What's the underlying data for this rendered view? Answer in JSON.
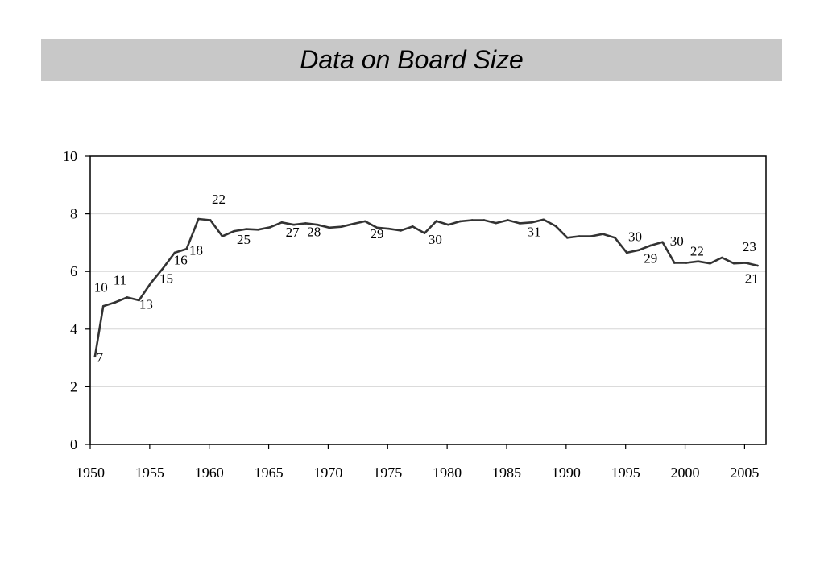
{
  "title": "Data on Board Size",
  "chart_data": {
    "type": "line",
    "title": "Data on Board Size",
    "xlabel": "",
    "ylabel": "",
    "xlim": [
      1950,
      2006.8
    ],
    "ylim": [
      0,
      10
    ],
    "x_ticks": [
      1950,
      1955,
      1960,
      1965,
      1970,
      1975,
      1980,
      1985,
      1990,
      1995,
      2000,
      2005
    ],
    "y_ticks": [
      0,
      2,
      4,
      6,
      8,
      10
    ],
    "grid": "horizontal",
    "line_color": "#333333",
    "series": [
      {
        "x": [
          1950.4,
          1951.1,
          1952.1,
          1953.1,
          1954.1,
          1955.1,
          1956.1,
          1957.1,
          1958.1,
          1959.1,
          1960.1,
          1961.1,
          1962.1,
          1963.1,
          1964.1,
          1965.1,
          1966.1,
          1967.1,
          1968.1,
          1969.1,
          1970.1,
          1971.1,
          1972.1,
          1973.1,
          1974.1,
          1975.1,
          1976.1,
          1977.1,
          1978.1,
          1979.1,
          1980.1,
          1981.1,
          1982.1,
          1983.1,
          1984.1,
          1985.1,
          1986.1,
          1987.1,
          1988.1,
          1989.1,
          1990.1,
          1991.1,
          1992.1,
          1993.1,
          1994.1,
          1995.1,
          1996.1,
          1997.1,
          1998.1,
          1999.1,
          2000.1,
          2001.1,
          2002.1,
          2003.1,
          2004.1,
          2005.1,
          2006.1
        ],
        "values": [
          3.05,
          4.8,
          4.93,
          5.1,
          5.0,
          5.6,
          6.1,
          6.65,
          6.78,
          7.82,
          7.78,
          7.22,
          7.4,
          7.47,
          7.45,
          7.53,
          7.7,
          7.62,
          7.67,
          7.62,
          7.52,
          7.55,
          7.65,
          7.74,
          7.52,
          7.48,
          7.42,
          7.56,
          7.33,
          7.75,
          7.62,
          7.74,
          7.78,
          7.78,
          7.68,
          7.78,
          7.67,
          7.7,
          7.8,
          7.58,
          7.17,
          7.22,
          7.22,
          7.3,
          7.17,
          6.65,
          6.74,
          6.9,
          7.02,
          6.3,
          6.3,
          6.35,
          6.28,
          6.48,
          6.28,
          6.3,
          6.2
        ]
      }
    ],
    "annotations": [
      {
        "text": "7",
        "x": 1950.8,
        "y": 2.87
      },
      {
        "text": "10",
        "x": 1950.9,
        "y": 5.3
      },
      {
        "text": "11",
        "x": 1952.5,
        "y": 5.55
      },
      {
        "text": "13",
        "x": 1954.7,
        "y": 4.7
      },
      {
        "text": "15",
        "x": 1956.4,
        "y": 5.6
      },
      {
        "text": "16",
        "x": 1957.6,
        "y": 6.25
      },
      {
        "text": "18",
        "x": 1958.9,
        "y": 6.58
      },
      {
        "text": "22",
        "x": 1960.8,
        "y": 8.35
      },
      {
        "text": "25",
        "x": 1962.9,
        "y": 6.95
      },
      {
        "text": "27",
        "x": 1967.0,
        "y": 7.2
      },
      {
        "text": "28",
        "x": 1968.8,
        "y": 7.22
      },
      {
        "text": "29",
        "x": 1974.1,
        "y": 7.15
      },
      {
        "text": "30",
        "x": 1979.0,
        "y": 6.95
      },
      {
        "text": "31",
        "x": 1987.3,
        "y": 7.22
      },
      {
        "text": "30",
        "x": 1995.8,
        "y": 7.05
      },
      {
        "text": "29",
        "x": 1997.1,
        "y": 6.3
      },
      {
        "text": "30",
        "x": 1999.3,
        "y": 6.9
      },
      {
        "text": "22",
        "x": 2001.0,
        "y": 6.55
      },
      {
        "text": "23",
        "x": 2005.4,
        "y": 6.7
      },
      {
        "text": "21",
        "x": 2005.6,
        "y": 5.6
      }
    ]
  }
}
